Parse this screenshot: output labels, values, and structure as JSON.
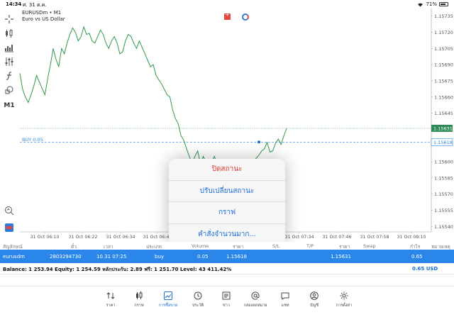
{
  "status_bar": {
    "time": "14:34",
    "date": "ศ. 31 ต.ค.",
    "battery": "71%"
  },
  "chart": {
    "symbol": "EURUSDm • M1",
    "description": "Euro vs US Dollar",
    "buy_label": "BUY 0.05",
    "current_price": "1.15631",
    "order_price": "1.15618",
    "colors": {
      "line": "#2e9a4a",
      "grid": "#dcdcdc",
      "price_tag": "#2e8b57",
      "order_line": "#2a86e8"
    },
    "y_ticks": [
      "1.15735",
      "1.15720",
      "1.15705",
      "1.15690",
      "1.15675",
      "1.15660",
      "1.15645",
      "1.15631",
      "1.15618",
      "1.15600",
      "1.15585",
      "1.15570",
      "1.15555",
      "1.15540"
    ],
    "x_ticks": [
      "31 Oct 06:10",
      "31 Oct 06:22",
      "31 Oct 06:34",
      "31 Oct 06:46",
      "31 Oct 07:34",
      "31 Oct 07:46",
      "31 Oct 07:58",
      "31 Oct 08:10"
    ]
  },
  "chart_data": {
    "type": "line",
    "title": "EURUSDm • M1",
    "subtitle": "Euro vs US Dollar",
    "xlabel": "",
    "ylabel": "",
    "ylim": [
      1.15535,
      1.15742
    ],
    "x": [
      0,
      1,
      2,
      3,
      4,
      5,
      6,
      7,
      8,
      9,
      10,
      11,
      12,
      13,
      14,
      15,
      16,
      17,
      18,
      19,
      20,
      21,
      22,
      23,
      24,
      25,
      26,
      27,
      28,
      29,
      30,
      31,
      32,
      33,
      34,
      35,
      36,
      37,
      38,
      39,
      40,
      41,
      42,
      43,
      44,
      45,
      46,
      47,
      48,
      49,
      50,
      51,
      52,
      53,
      54,
      55,
      56,
      57,
      58,
      59,
      60,
      61,
      62,
      63,
      64,
      65,
      66,
      67,
      68,
      69,
      70,
      71,
      72,
      73,
      74,
      75,
      76,
      77,
      78,
      79,
      80,
      81,
      82,
      83,
      84,
      85,
      86,
      87,
      88,
      89,
      90,
      91,
      92,
      93,
      94,
      95,
      96
    ],
    "series": [
      {
        "values": [
          1.15682,
          1.15667,
          1.1566,
          1.15655,
          1.15662,
          1.1567,
          1.1568,
          1.15674,
          1.15668,
          1.15662,
          1.15677,
          1.1569,
          1.15705,
          1.15695,
          1.15688,
          1.15705,
          1.157,
          1.1571,
          1.15718,
          1.15724,
          1.1572,
          1.15712,
          1.15716,
          1.15725,
          1.15718,
          1.15719,
          1.15712,
          1.1571,
          1.15716,
          1.15722,
          1.15718,
          1.1571,
          1.15705,
          1.15712,
          1.15716,
          1.1571,
          1.157,
          1.15702,
          1.15712,
          1.15718,
          1.15716,
          1.1571,
          1.15705,
          1.15712,
          1.15706,
          1.157,
          1.15694,
          1.15688,
          1.1569,
          1.1568,
          1.15676,
          1.15672,
          1.15667,
          1.15662,
          1.1566,
          1.15648,
          1.1564,
          1.15635,
          1.15624,
          1.1562,
          1.15612,
          1.15605,
          1.15598,
          1.15605,
          1.1561,
          1.15598,
          1.15605,
          1.156,
          1.15597,
          1.156,
          1.15605,
          1.15598,
          1.15595,
          1.15592,
          1.15595,
          1.15598,
          1.15596,
          1.15593,
          1.1559,
          1.15594,
          1.15597,
          1.156,
          1.15602,
          1.15598,
          1.156,
          1.15603,
          1.15606,
          1.1561,
          1.15612,
          1.15618,
          1.15609,
          1.1561,
          1.15617,
          1.15621,
          1.15616,
          1.15624,
          1.15631
        ]
      }
    ],
    "markers": [
      {
        "label": "BUY 0.05",
        "price": 1.15618
      }
    ],
    "grid": true
  },
  "context_menu": {
    "items": [
      "ปิดสถานะ",
      "ปรับเปลี่ยนสถานะ",
      "กราฟ",
      "คำสั่งจำนวนมาก..."
    ]
  },
  "table": {
    "headers": [
      "สัญลักษณ์",
      "ตั๋ว",
      "เวลา",
      "ประเภท",
      "Volume",
      "ราคา",
      "S/L",
      "T/P",
      "ราคา",
      "Swap",
      "กำไร",
      "หมายเหตุ"
    ],
    "row": {
      "symbol": "eurusdm",
      "ticket": "2803294730",
      "time": "10.31 07:25",
      "type": "buy",
      "volume": "0.05",
      "open_price": "1.15618",
      "current_price": "1.15631",
      "profit": "0.65"
    }
  },
  "balance": {
    "text": "Balance: 1 253.94 Equity: 1 254.59 หลักประกัน: 2.89 ฟรี: 1 251.70 Level: 43 411.42%",
    "profit": "0.65  USD"
  },
  "tabbar": {
    "tabs": [
      {
        "label": "ราคา",
        "icon": "quotes-arrows-icon"
      },
      {
        "label": "กราฟ",
        "icon": "candles-icon"
      },
      {
        "label": "การซื้อขาย",
        "icon": "trade-chart-icon",
        "active": true
      },
      {
        "label": "ประวัติ",
        "icon": "history-clock-icon"
      },
      {
        "label": "ข่าว",
        "icon": "news-icon"
      },
      {
        "label": "กล่องจดหมาย",
        "icon": "mailbox-at-icon"
      },
      {
        "label": "แชท",
        "icon": "chat-bubble-icon"
      },
      {
        "label": "บัญชี",
        "icon": "account-user-icon"
      },
      {
        "label": "การตั้งค่า",
        "icon": "settings-gear-icon"
      }
    ]
  }
}
